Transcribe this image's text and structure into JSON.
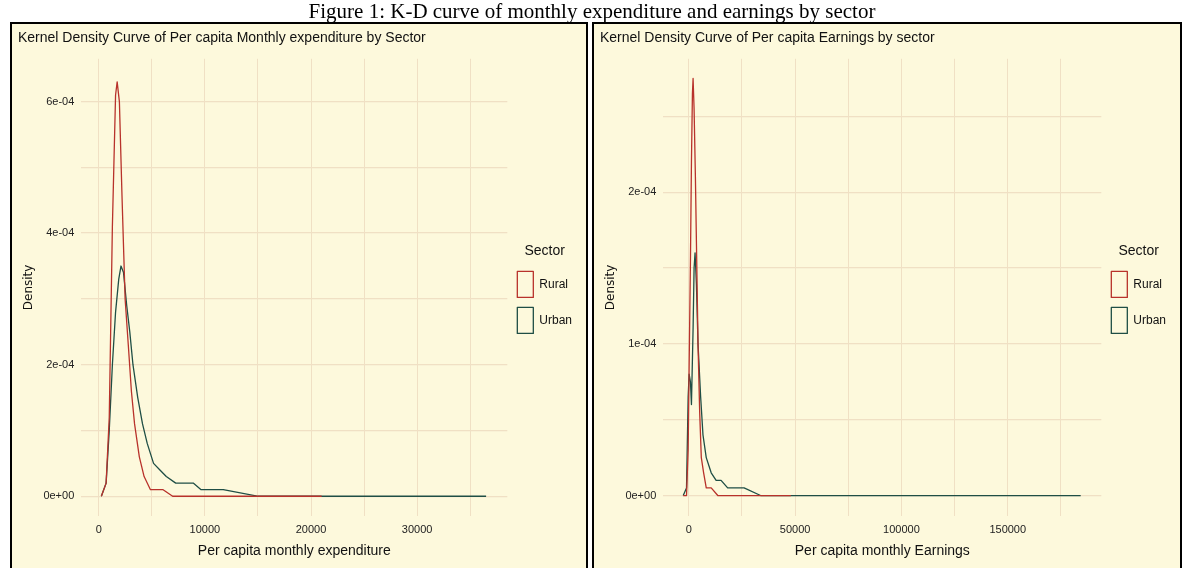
{
  "chart_data": [
    {
      "type": "line",
      "title": "Kernel Density Curve of Per capita Monthly expenditure by Sector",
      "xlabel": "Per capita monthly expenditure",
      "ylabel": "Density",
      "legend_title": "Sector",
      "legend": "right",
      "grid": true,
      "marker": "none",
      "line_style": "solid",
      "annotations": [
        "Figure 1: K-D curve of monthly expenditure and earnings by sector"
      ],
      "xlim": [
        -1650,
        38500
      ],
      "xticks": [
        0,
        {
          "value": 5000,
          "label": null
        },
        10000,
        {
          "value": 15000,
          "label": null
        },
        20000,
        {
          "value": 25000,
          "label": null
        },
        30000,
        {
          "value": 35000,
          "label": null
        }
      ],
      "ylim": [
        -3e-05,
        0.000665
      ],
      "yticks": [
        {
          "value": 0,
          "label": "0e+00"
        },
        {
          "value": 0.0001,
          "label": null
        },
        {
          "value": 0.0002,
          "label": "2e-04"
        },
        {
          "value": 0.0003,
          "label": null
        },
        {
          "value": 0.0004,
          "label": "4e-04"
        },
        {
          "value": 0.0005,
          "label": null
        },
        {
          "value": 0.0006,
          "label": "6e-04"
        }
      ],
      "series": [
        {
          "name": "Rural",
          "color": "#b8322b",
          "x": [
            240,
            690,
            985,
            1280,
            1580,
            1730,
            1940,
            2180,
            2480,
            2780,
            3070,
            3370,
            3820,
            4270,
            4870,
            5460,
            6060,
            6960,
            7850,
            21000
          ],
          "values": [
            0,
            2e-05,
            0.00012,
            0.00041,
            0.00061,
            0.00063,
            0.0006,
            0.00046,
            0.0003,
            0.00023,
            0.00016,
            0.00011,
            6e-05,
            3e-05,
            1e-05,
            1e-05,
            1e-05,
            0,
            0,
            0
          ]
        },
        {
          "name": "Urban",
          "color": "#1f4e45",
          "x": [
            240,
            690,
            985,
            1280,
            1580,
            1880,
            2090,
            2330,
            2630,
            2920,
            3220,
            3670,
            4120,
            4570,
            5160,
            5760,
            6360,
            7250,
            8150,
            8900,
            9640,
            11130,
            11730,
            15000,
            18000,
            21000,
            36500
          ],
          "values": [
            0,
            2e-05,
            0.0001,
            0.0002,
            0.00028,
            0.00033,
            0.00035,
            0.00034,
            0.00029,
            0.00025,
            0.0002,
            0.00015,
            0.00011,
            8e-05,
            5e-05,
            4e-05,
            3e-05,
            2e-05,
            2e-05,
            2e-05,
            1e-05,
            1e-05,
            1e-05,
            0,
            0,
            0,
            0
          ]
        }
      ]
    },
    {
      "type": "line",
      "title": "Kernel Density Curve of Per capita Earnings by sector",
      "xlabel": "Per capita monthly Earnings",
      "ylabel": "Density",
      "legend_title": "Sector",
      "legend": "right",
      "grid": true,
      "marker": "none",
      "line_style": "solid",
      "xlim": [
        -12000,
        194000
      ],
      "xticks": [
        0,
        {
          "value": 25000,
          "label": null
        },
        50000,
        {
          "value": 75000,
          "label": null
        },
        100000,
        {
          "value": 125000,
          "label": null
        },
        150000,
        {
          "value": 175000,
          "label": null
        }
      ],
      "ylim": [
        -1.35e-05,
        0.000288
      ],
      "yticks": [
        {
          "value": 0,
          "label": "0e+00"
        },
        {
          "value": 5e-05,
          "label": null
        },
        {
          "value": 0.0001,
          "label": "1e-04"
        },
        {
          "value": 0.00015,
          "label": null
        },
        {
          "value": 0.0002,
          "label": "2e-04"
        },
        {
          "value": 0.00025,
          "label": null
        }
      ],
      "series": [
        {
          "name": "Rural",
          "color": "#b8322b",
          "x": [
            -2630,
            -1080,
            -310,
            150,
            770,
            1240,
            1700,
            2010,
            2480,
            3100,
            3720,
            4330,
            5110,
            5880,
            6970,
            8200,
            10530,
            13620,
            18270,
            48000
          ],
          "values": [
            0,
            0,
            3e-05,
            8.5e-05,
            0.000155,
            0.00022,
            0.000265,
            0.000275,
            0.000255,
            0.00021,
            0.000155,
            0.0001,
            5.5e-05,
            2.5e-05,
            1.5e-05,
            5e-06,
            5e-06,
            0,
            0,
            0
          ]
        },
        {
          "name": "Urban",
          "color": "#1f4e45",
          "x": [
            -2630,
            -1080,
            -310,
            150,
            770,
            1240,
            2010,
            2480,
            2940,
            3560,
            4330,
            5570,
            6660,
            8200,
            10530,
            12850,
            15170,
            18270,
            21360,
            26000,
            33750,
            44580,
            50800,
            184300
          ],
          "values": [
            0,
            5e-06,
            6.5e-05,
            8e-05,
            7.5e-05,
            6e-05,
            0.00011,
            0.00015,
            0.00016,
            0.00014,
            0.0001,
            6.5e-05,
            4e-05,
            2.5e-05,
            1.5e-05,
            1e-05,
            1e-05,
            5e-06,
            5e-06,
            5e-06,
            0,
            0,
            0,
            0
          ]
        }
      ]
    }
  ]
}
